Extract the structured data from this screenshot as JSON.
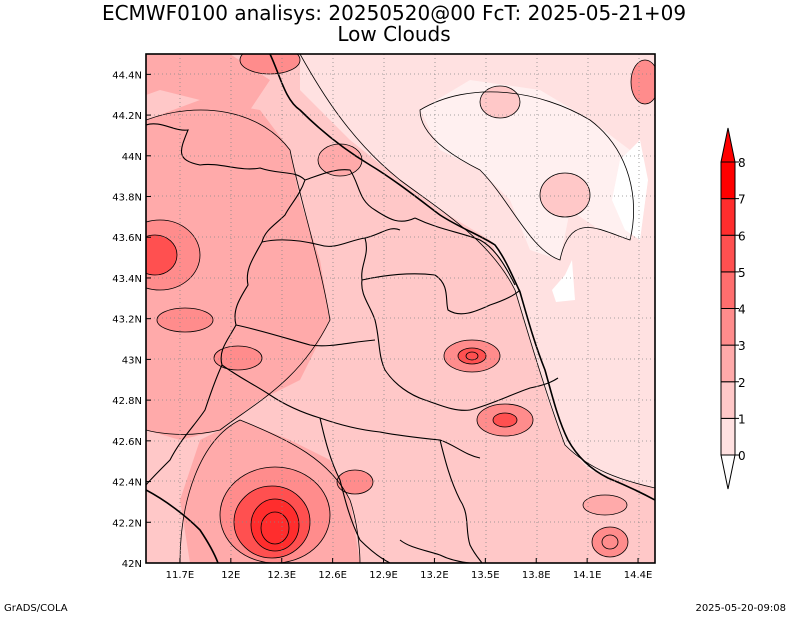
{
  "title": {
    "line1": "ECMWF0100 analisys: 20250520@00 FcT: 2025-05-21+09",
    "line2": "Low Clouds"
  },
  "footer": {
    "left": "GrADS/COLA",
    "right": "2025-05-20-09:08"
  },
  "map": {
    "lon_range": [
      11.5,
      14.5
    ],
    "lat_range": [
      42.0,
      44.5
    ],
    "lon_ticks": [
      {
        "value": 11.7,
        "label": "11.7E"
      },
      {
        "value": 12.0,
        "label": "12E"
      },
      {
        "value": 12.3,
        "label": "12.3E"
      },
      {
        "value": 12.6,
        "label": "12.6E"
      },
      {
        "value": 12.9,
        "label": "12.9E"
      },
      {
        "value": 13.2,
        "label": "13.2E"
      },
      {
        "value": 13.5,
        "label": "13.5E"
      },
      {
        "value": 13.8,
        "label": "13.8E"
      },
      {
        "value": 14.1,
        "label": "14.1E"
      },
      {
        "value": 14.4,
        "label": "14.4E"
      }
    ],
    "lat_ticks": [
      {
        "value": 42.0,
        "label": "42N"
      },
      {
        "value": 42.2,
        "label": "42.2N"
      },
      {
        "value": 42.4,
        "label": "42.4N"
      },
      {
        "value": 42.6,
        "label": "42.6N"
      },
      {
        "value": 42.8,
        "label": "42.8N"
      },
      {
        "value": 43.0,
        "label": "43N"
      },
      {
        "value": 43.2,
        "label": "43.2N"
      },
      {
        "value": 43.4,
        "label": "43.4N"
      },
      {
        "value": 43.6,
        "label": "43.6N"
      },
      {
        "value": 43.8,
        "label": "43.8N"
      },
      {
        "value": 44.0,
        "label": "44N"
      },
      {
        "value": 44.2,
        "label": "44.2N"
      },
      {
        "value": 44.4,
        "label": "44.4N"
      }
    ],
    "grid": true
  },
  "colorbar": {
    "levels": [
      "0",
      "1",
      "2",
      "3",
      "4",
      "5",
      "6",
      "7",
      "8"
    ],
    "colors": [
      "#ffffff",
      "#ffe1e1",
      "#ffc8c8",
      "#ffaaaa",
      "#ff8c8c",
      "#ff6e6e",
      "#ff5050",
      "#ff2d2d",
      "#ff0000"
    ]
  }
}
